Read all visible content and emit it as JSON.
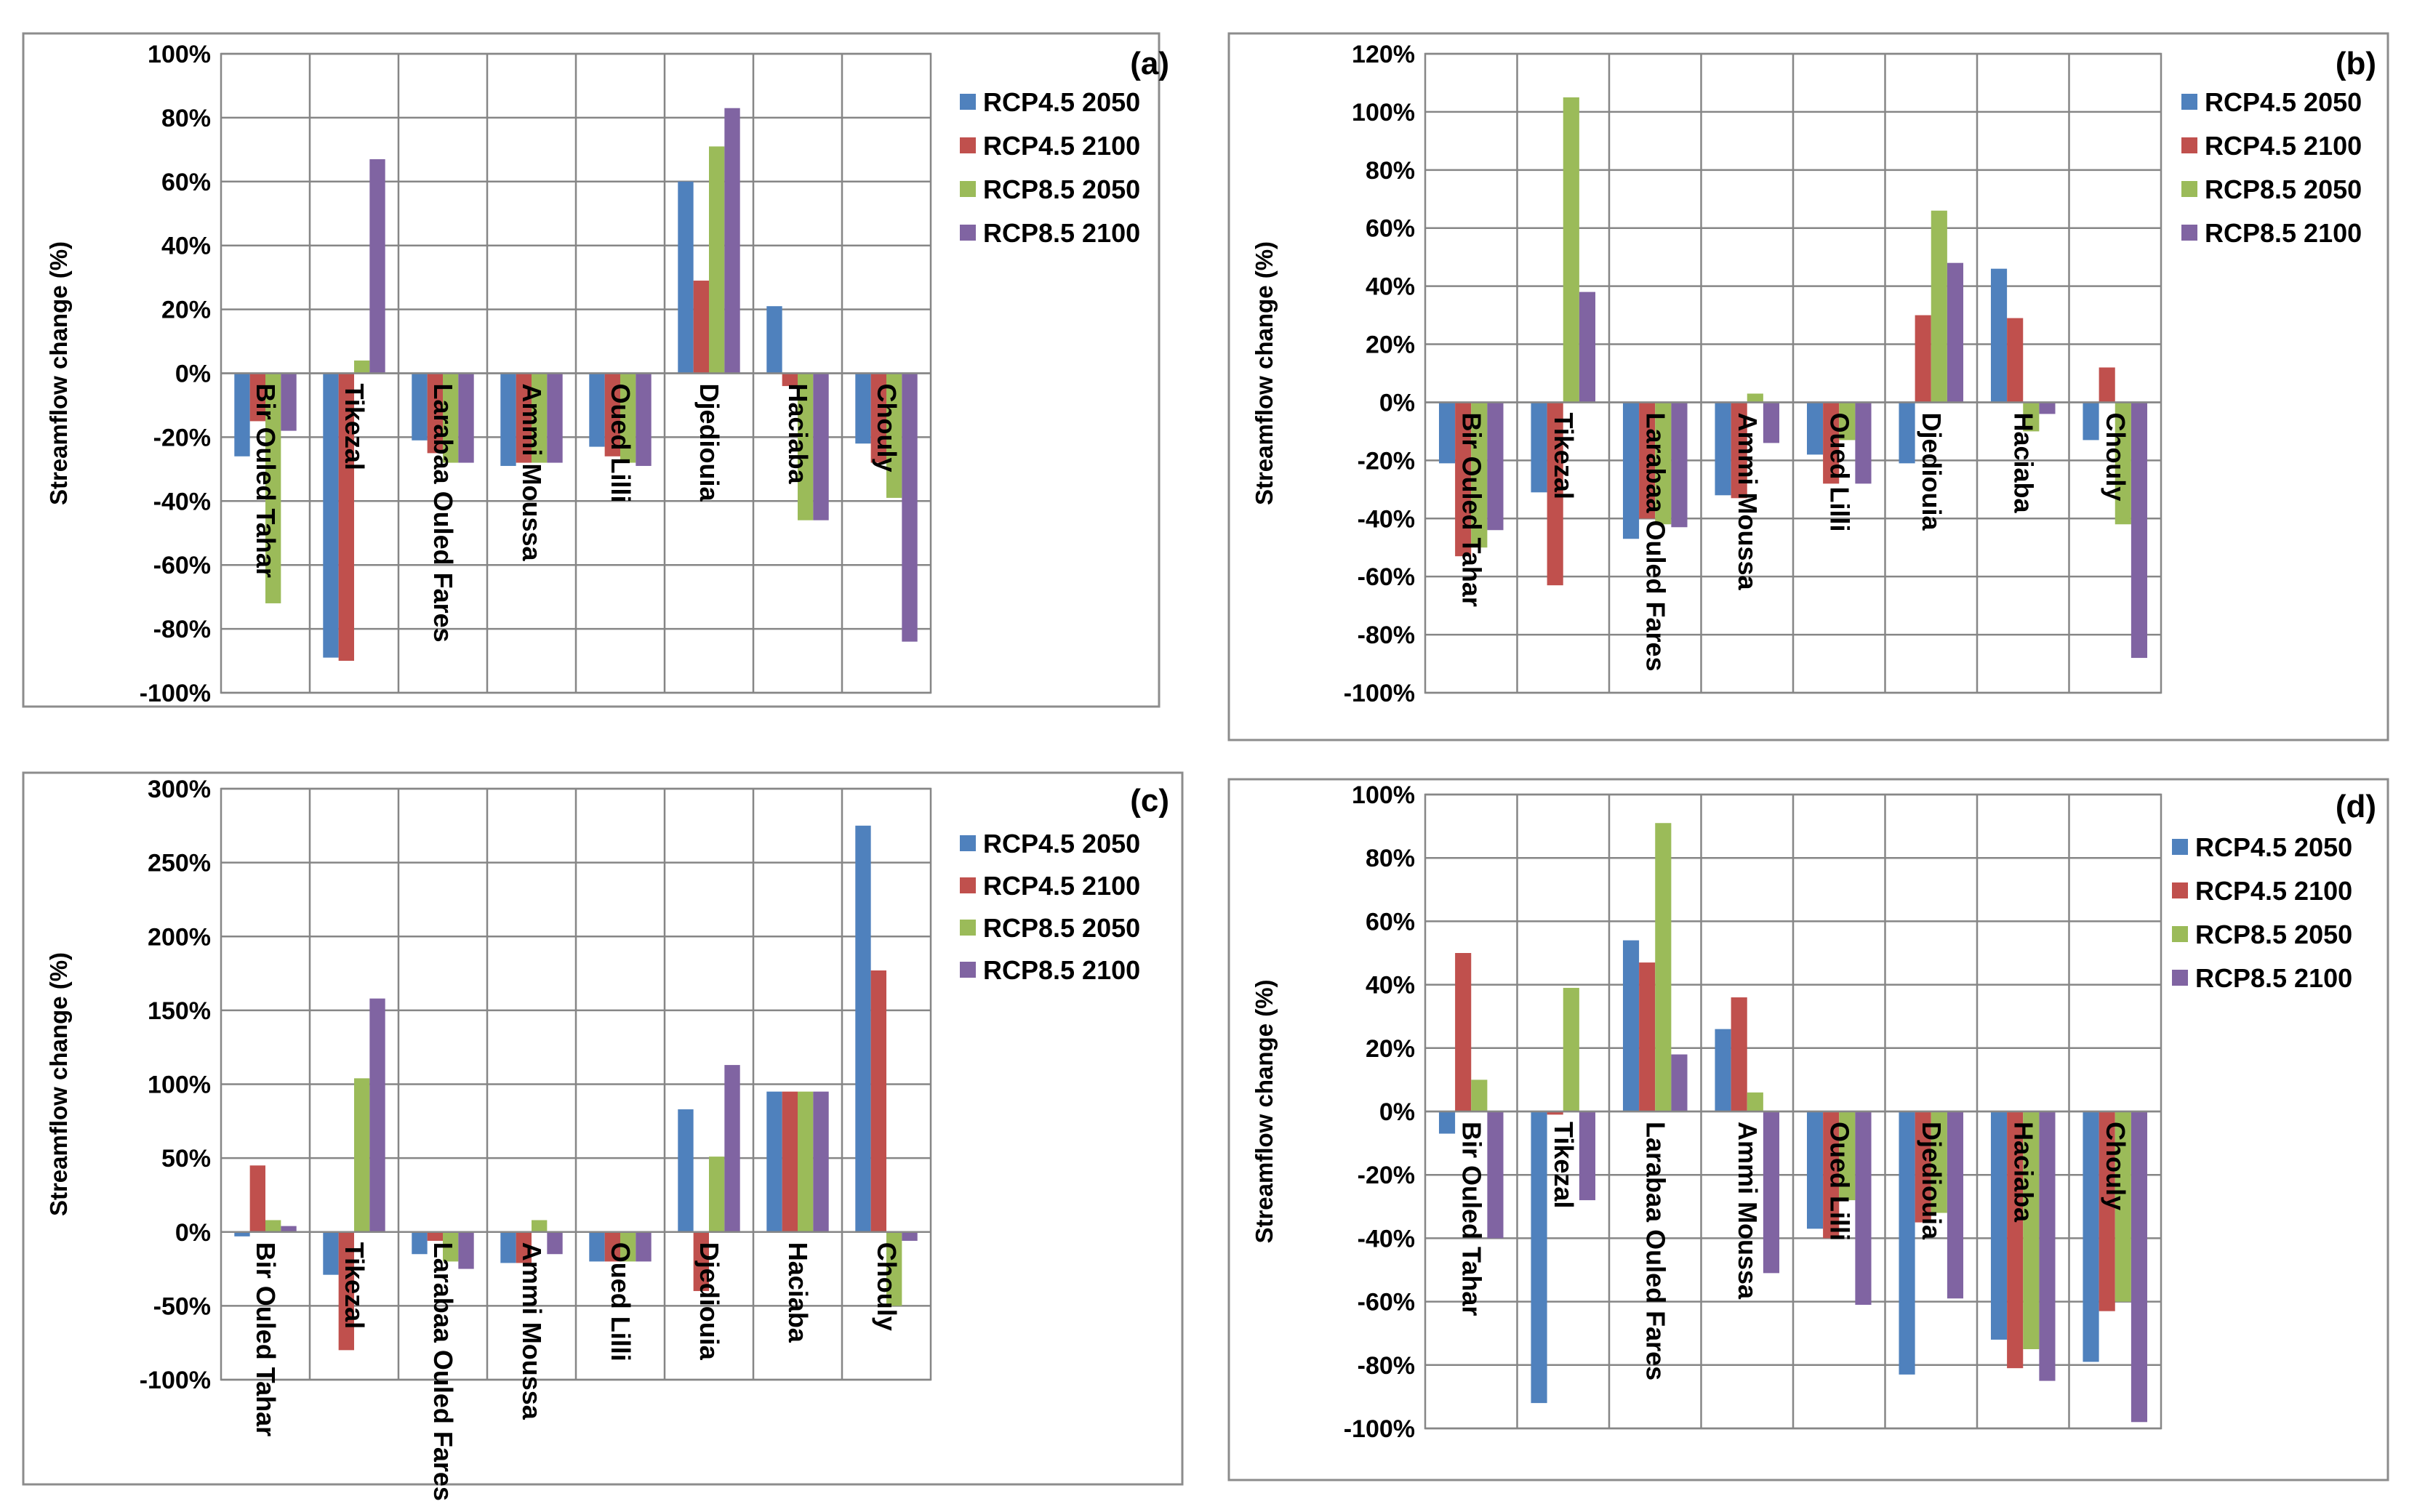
{
  "chart_data": [
    {
      "type": "bar",
      "panel_label": "(a)",
      "ylabel": "Streamflow change (%)",
      "ylim": [
        -100,
        100
      ],
      "ytick_step": 20,
      "legend_position": "right",
      "grid": true,
      "categories": [
        "Bir Ouled Tahar",
        "Tikezal",
        "Larabaa Ouled Fares",
        "Ammi Moussa",
        "Oued Lilli",
        "Djediouia",
        "Haciaba",
        "Chouly"
      ],
      "series": [
        {
          "name": "RCP4.5 2050",
          "color": "#4f81bd",
          "values": [
            -26,
            -89,
            -21,
            -29,
            -23,
            60,
            21,
            -22
          ]
        },
        {
          "name": "RCP4.5 2100",
          "color": "#c0504d",
          "values": [
            -15,
            -90,
            -25,
            -28,
            -26,
            29,
            -4,
            -28
          ]
        },
        {
          "name": "RCP8.5 2050",
          "color": "#9bbb59",
          "values": [
            -72,
            4,
            -28,
            -28,
            -28,
            71,
            -46,
            -39
          ]
        },
        {
          "name": "RCP8.5 2100",
          "color": "#8064a2",
          "values": [
            -18,
            67,
            -28,
            -28,
            -29,
            83,
            -46,
            -84
          ]
        }
      ]
    },
    {
      "type": "bar",
      "panel_label": "(b)",
      "ylabel": "Streamflow change (%)",
      "ylim": [
        -100,
        120
      ],
      "ytick_step": 20,
      "legend_position": "right",
      "grid": true,
      "categories": [
        "Bir Ouled Tahar",
        "Tikezal",
        "Larabaa Ouled Fares",
        "Ammi Moussa",
        "Oued Lilli",
        "Djediouia",
        "Haciaba",
        "Chouly"
      ],
      "series": [
        {
          "name": "RCP4.5 2050",
          "color": "#4f81bd",
          "values": [
            -21,
            -31,
            -47,
            -32,
            -18,
            -21,
            46,
            -13
          ]
        },
        {
          "name": "RCP4.5 2100",
          "color": "#c0504d",
          "values": [
            -53,
            -63,
            -40,
            -33,
            -28,
            30,
            29,
            12
          ]
        },
        {
          "name": "RCP8.5 2050",
          "color": "#9bbb59",
          "values": [
            -50,
            105,
            -42,
            3,
            -13,
            66,
            -10,
            -42
          ]
        },
        {
          "name": "RCP8.5 2100",
          "color": "#8064a2",
          "values": [
            -44,
            38,
            -43,
            -14,
            -28,
            48,
            -4,
            -88
          ]
        }
      ]
    },
    {
      "type": "bar",
      "panel_label": "(c)",
      "ylabel": "Streamflow change (%)",
      "ylim": [
        -100,
        300
      ],
      "ytick_step": 50,
      "legend_position": "right",
      "grid": true,
      "categories": [
        "Bir Ouled Tahar",
        "Tikezal",
        "Larabaa Ouled Fares",
        "Ammi Moussa",
        "Oued Lilli",
        "Djediouia",
        "Haciaba",
        "Chouly"
      ],
      "series": [
        {
          "name": "RCP4.5 2050",
          "color": "#4f81bd",
          "values": [
            -3,
            -29,
            -15,
            -21,
            -20,
            83,
            95,
            275
          ]
        },
        {
          "name": "RCP4.5 2100",
          "color": "#c0504d",
          "values": [
            45,
            -80,
            -6,
            -21,
            -20,
            -40,
            95,
            177
          ]
        },
        {
          "name": "RCP8.5 2050",
          "color": "#9bbb59",
          "values": [
            8,
            104,
            -20,
            8,
            -20,
            51,
            95,
            -50
          ]
        },
        {
          "name": "RCP8.5 2100",
          "color": "#8064a2",
          "values": [
            4,
            158,
            -25,
            -15,
            -20,
            113,
            95,
            -6
          ]
        }
      ]
    },
    {
      "type": "bar",
      "panel_label": "(d)",
      "ylabel": "Streamflow change (%)",
      "ylim": [
        -100,
        100
      ],
      "ytick_step": 20,
      "legend_position": "right",
      "grid": true,
      "categories": [
        "Bir Ouled Tahar",
        "Tikezal",
        "Larabaa Ouled Fares",
        "Ammi Moussa",
        "Oued Lilli",
        "Djediouia",
        "Haciaba",
        "Chouly"
      ],
      "series": [
        {
          "name": "RCP4.5 2050",
          "color": "#4f81bd",
          "values": [
            -7,
            -92,
            54,
            26,
            -37,
            -83,
            -72,
            -79
          ]
        },
        {
          "name": "RCP4.5 2100",
          "color": "#c0504d",
          "values": [
            50,
            -1,
            47,
            36,
            -40,
            -35,
            -81,
            -63
          ]
        },
        {
          "name": "RCP8.5 2050",
          "color": "#9bbb59",
          "values": [
            10,
            39,
            91,
            6,
            -28,
            -32,
            -75,
            -60
          ]
        },
        {
          "name": "RCP8.5 2100",
          "color": "#8064a2",
          "values": [
            -40,
            -28,
            18,
            -51,
            -61,
            -59,
            -85,
            -98
          ]
        }
      ]
    }
  ]
}
